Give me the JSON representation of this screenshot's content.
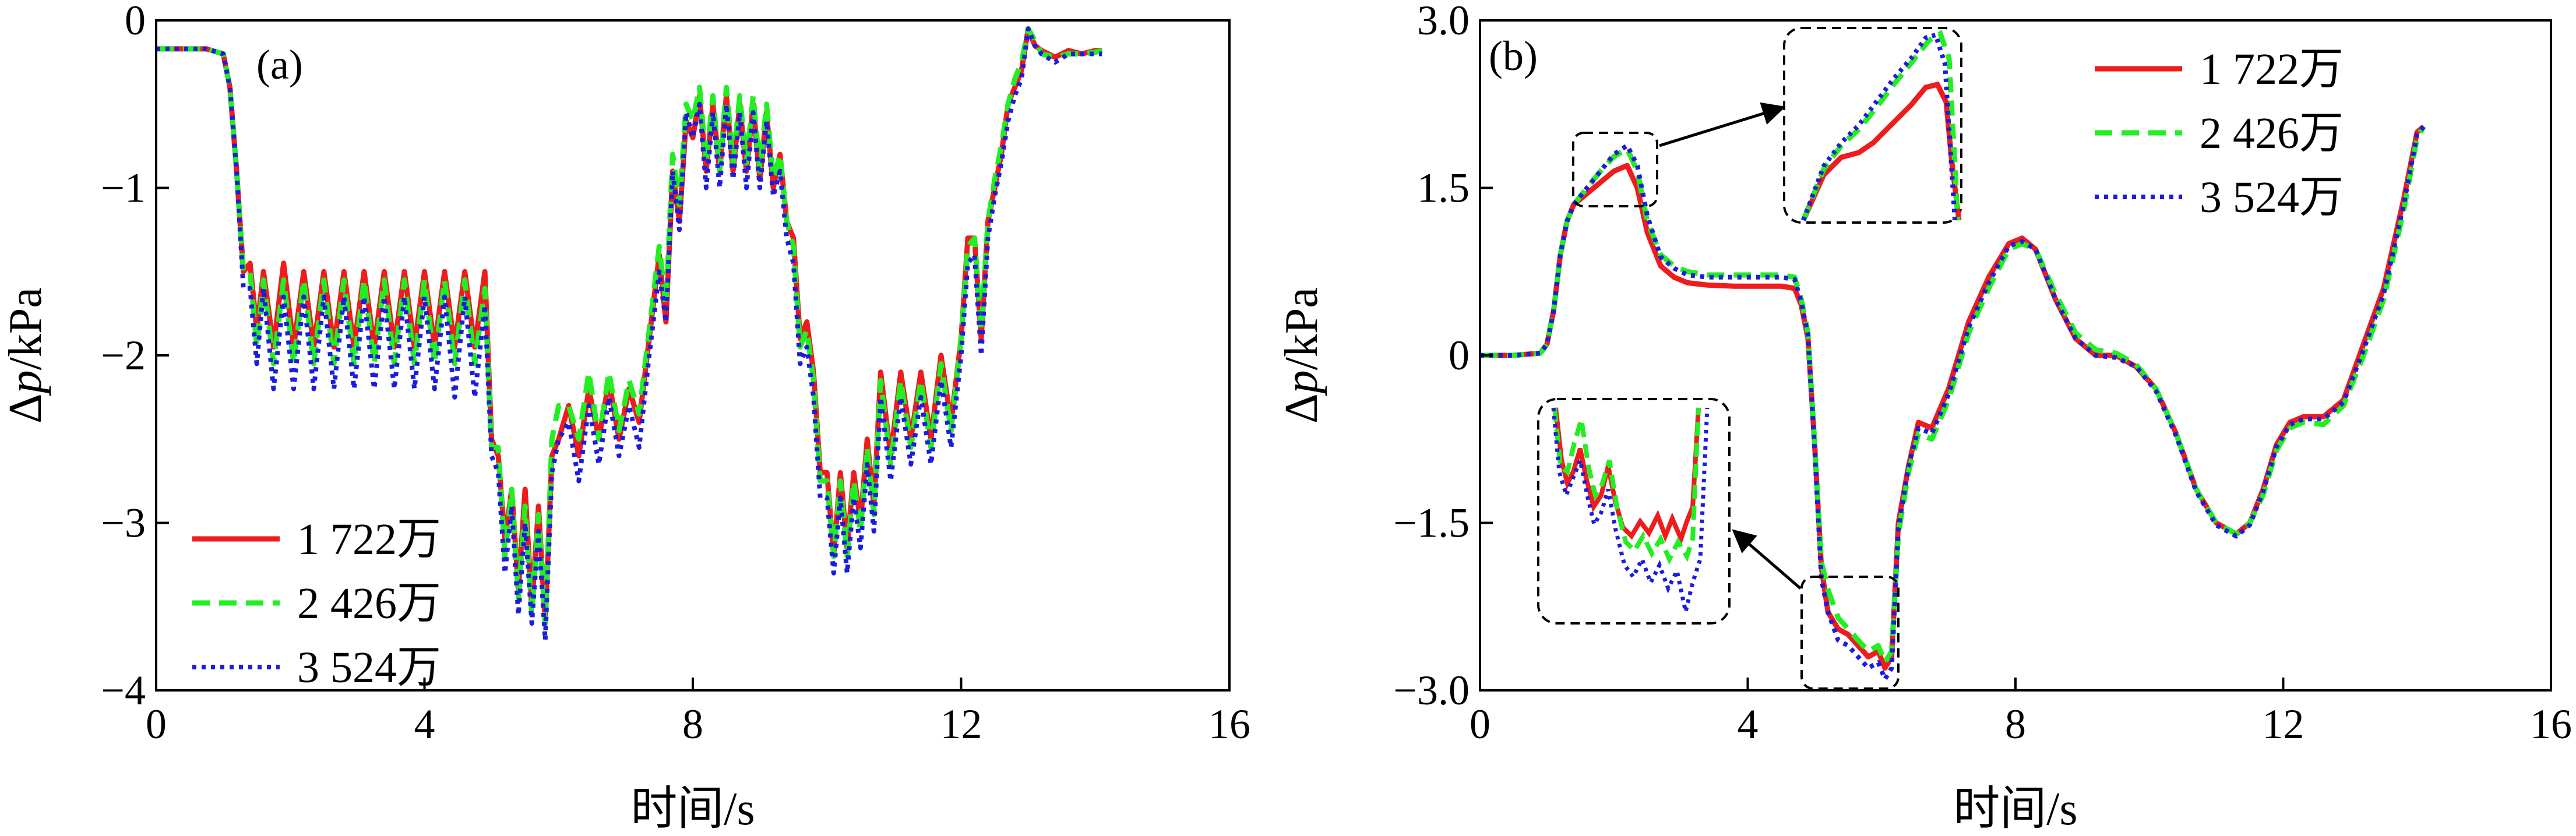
{
  "chart_data": [
    {
      "type": "line",
      "panel_label": "(a)",
      "xlabel": "时间/s",
      "ylabel_prefix": "Δ",
      "ylabel_var": "p",
      "ylabel_suffix": "/kPa",
      "xlim": [
        0,
        16
      ],
      "ylim": [
        -4,
        0
      ],
      "xticks": [
        0,
        4,
        8,
        12,
        16
      ],
      "xtick_labels": [
        "0",
        "4",
        "8",
        "12",
        "16"
      ],
      "yticks": [
        -4,
        -3,
        -2,
        -1,
        0
      ],
      "ytick_labels": [
        "−4",
        "−3",
        "−2",
        "−1",
        "0"
      ],
      "legend_position": "lower-left",
      "x": [
        0.0,
        0.25,
        0.5,
        0.75,
        1.0,
        1.1,
        1.2,
        1.3,
        1.4,
        1.5,
        1.6,
        1.75,
        1.9,
        2.05,
        2.2,
        2.35,
        2.5,
        2.65,
        2.8,
        2.95,
        3.1,
        3.25,
        3.4,
        3.55,
        3.7,
        3.85,
        4.0,
        4.15,
        4.3,
        4.45,
        4.6,
        4.75,
        4.9,
        5.0,
        5.1,
        5.2,
        5.3,
        5.4,
        5.5,
        5.6,
        5.7,
        5.8,
        5.9,
        6.0,
        6.15,
        6.3,
        6.45,
        6.6,
        6.75,
        6.9,
        7.05,
        7.2,
        7.35,
        7.5,
        7.6,
        7.7,
        7.8,
        7.9,
        8.0,
        8.1,
        8.2,
        8.3,
        8.4,
        8.5,
        8.6,
        8.7,
        8.8,
        8.9,
        9.0,
        9.1,
        9.2,
        9.3,
        9.4,
        9.5,
        9.6,
        9.7,
        9.8,
        9.9,
        10.0,
        10.1,
        10.2,
        10.3,
        10.4,
        10.5,
        10.6,
        10.7,
        10.8,
        10.95,
        11.1,
        11.25,
        11.4,
        11.55,
        11.7,
        11.85,
        12.0,
        12.1,
        12.2,
        12.3,
        12.4,
        12.5,
        12.6,
        12.7,
        12.8,
        12.9,
        13.0,
        13.1,
        13.2,
        13.4,
        13.6,
        13.8,
        14.0,
        14.1
      ],
      "series": [
        {
          "name": "1 722万",
          "color": "#ee1c1c",
          "dash": "solid",
          "values": [
            -0.17,
            -0.17,
            -0.17,
            -0.17,
            -0.2,
            -0.4,
            -0.9,
            -1.5,
            -1.45,
            -1.85,
            -1.5,
            -1.95,
            -1.45,
            -1.95,
            -1.5,
            -1.95,
            -1.5,
            -1.95,
            -1.5,
            -1.95,
            -1.5,
            -1.95,
            -1.5,
            -1.95,
            -1.5,
            -1.95,
            -1.5,
            -1.95,
            -1.5,
            -1.95,
            -1.5,
            -1.95,
            -1.5,
            -2.5,
            -2.6,
            -3.1,
            -2.8,
            -3.4,
            -2.8,
            -3.5,
            -2.9,
            -3.6,
            -2.6,
            -2.5,
            -2.3,
            -2.6,
            -2.2,
            -2.5,
            -2.15,
            -2.5,
            -2.2,
            -2.4,
            -1.9,
            -1.4,
            -1.8,
            -0.9,
            -1.2,
            -0.6,
            -0.7,
            -0.45,
            -0.9,
            -0.5,
            -0.9,
            -0.45,
            -0.9,
            -0.5,
            -0.9,
            -0.5,
            -0.95,
            -0.55,
            -1.0,
            -0.8,
            -1.2,
            -1.3,
            -1.9,
            -1.8,
            -2.1,
            -2.7,
            -2.7,
            -3.2,
            -2.7,
            -3.15,
            -2.7,
            -3.0,
            -2.5,
            -2.9,
            -2.1,
            -2.6,
            -2.1,
            -2.5,
            -2.1,
            -2.5,
            -2.0,
            -2.4,
            -1.9,
            -1.3,
            -1.3,
            -1.9,
            -1.2,
            -1.0,
            -0.8,
            -0.5,
            -0.4,
            -0.3,
            -0.05,
            -0.15,
            -0.18,
            -0.22,
            -0.18,
            -0.2,
            -0.18,
            -0.18
          ]
        },
        {
          "name": "2 426万",
          "color": "#22ee22",
          "dash": "dashed",
          "values": [
            -0.17,
            -0.17,
            -0.17,
            -0.17,
            -0.2,
            -0.4,
            -0.9,
            -1.5,
            -1.5,
            -1.95,
            -1.55,
            -2.05,
            -1.55,
            -2.05,
            -1.55,
            -2.05,
            -1.55,
            -2.05,
            -1.55,
            -2.05,
            -1.55,
            -2.05,
            -1.55,
            -2.05,
            -1.55,
            -2.05,
            -1.55,
            -2.05,
            -1.55,
            -2.05,
            -1.55,
            -2.05,
            -1.6,
            -2.55,
            -2.55,
            -3.2,
            -2.8,
            -3.45,
            -2.9,
            -3.55,
            -2.95,
            -3.6,
            -2.5,
            -2.3,
            -2.3,
            -2.5,
            -2.1,
            -2.5,
            -2.1,
            -2.45,
            -2.15,
            -2.35,
            -1.85,
            -1.35,
            -1.7,
            -0.8,
            -1.1,
            -0.5,
            -0.6,
            -0.4,
            -0.85,
            -0.45,
            -0.9,
            -0.4,
            -0.85,
            -0.45,
            -0.85,
            -0.45,
            -0.9,
            -0.5,
            -0.95,
            -0.8,
            -1.2,
            -1.35,
            -1.95,
            -1.85,
            -2.15,
            -2.75,
            -2.75,
            -3.2,
            -2.75,
            -3.2,
            -2.75,
            -3.05,
            -2.55,
            -2.95,
            -2.15,
            -2.65,
            -2.15,
            -2.55,
            -2.15,
            -2.55,
            -2.05,
            -2.45,
            -1.9,
            -1.35,
            -1.3,
            -1.85,
            -1.2,
            -0.95,
            -0.75,
            -0.5,
            -0.35,
            -0.25,
            -0.05,
            -0.12,
            -0.2,
            -0.22,
            -0.2,
            -0.2,
            -0.19,
            -0.18
          ]
        },
        {
          "name": "3 524万",
          "color": "#1c1cdd",
          "dash": "dotted",
          "values": [
            -0.17,
            -0.17,
            -0.17,
            -0.17,
            -0.2,
            -0.4,
            -0.9,
            -1.6,
            -1.6,
            -2.05,
            -1.6,
            -2.2,
            -1.65,
            -2.2,
            -1.65,
            -2.2,
            -1.65,
            -2.2,
            -1.65,
            -2.2,
            -1.65,
            -2.2,
            -1.65,
            -2.2,
            -1.65,
            -2.2,
            -1.65,
            -2.2,
            -1.65,
            -2.25,
            -1.65,
            -2.25,
            -1.7,
            -2.6,
            -2.7,
            -3.3,
            -2.9,
            -3.55,
            -3.0,
            -3.6,
            -3.05,
            -3.7,
            -2.7,
            -2.5,
            -2.4,
            -2.75,
            -2.3,
            -2.65,
            -2.25,
            -2.6,
            -2.3,
            -2.55,
            -2.0,
            -1.5,
            -1.8,
            -0.9,
            -1.25,
            -0.55,
            -0.7,
            -0.5,
            -1.0,
            -0.55,
            -1.0,
            -0.5,
            -0.95,
            -0.55,
            -1.0,
            -0.55,
            -1.0,
            -0.6,
            -1.05,
            -0.9,
            -1.3,
            -1.45,
            -2.05,
            -1.95,
            -2.25,
            -2.85,
            -2.85,
            -3.3,
            -2.85,
            -3.3,
            -2.85,
            -3.15,
            -2.65,
            -3.05,
            -2.25,
            -2.75,
            -2.25,
            -2.65,
            -2.25,
            -2.65,
            -2.15,
            -2.55,
            -2.0,
            -1.45,
            -1.4,
            -2.0,
            -1.3,
            -1.05,
            -0.85,
            -0.6,
            -0.45,
            -0.35,
            -0.05,
            -0.15,
            -0.2,
            -0.25,
            -0.2,
            -0.2,
            -0.2,
            -0.2
          ]
        }
      ]
    },
    {
      "type": "line",
      "panel_label": "(b)",
      "xlabel": "时间/s",
      "ylabel_prefix": "Δ",
      "ylabel_var": "p",
      "ylabel_suffix": "/kPa",
      "xlim": [
        0,
        16
      ],
      "ylim": [
        -3.0,
        3.0
      ],
      "xticks": [
        0,
        4,
        8,
        12,
        16
      ],
      "xtick_labels": [
        "0",
        "4",
        "8",
        "12",
        "16"
      ],
      "yticks": [
        -3.0,
        -1.5,
        0,
        1.5,
        3.0
      ],
      "ytick_labels": [
        "−3.0",
        "−1.5",
        "0",
        "1.5",
        "3.0"
      ],
      "legend_position": "top-right",
      "annotations": [
        "zoom inset near t≈2.2 s (peak ≈1.7 kPa)",
        "zoom inset near t≈5.5 s (trough ≈−2.7 kPa)"
      ],
      "x": [
        0.0,
        0.5,
        0.9,
        1.0,
        1.1,
        1.2,
        1.3,
        1.4,
        1.6,
        1.8,
        2.0,
        2.2,
        2.35,
        2.5,
        2.7,
        2.9,
        3.1,
        3.4,
        3.8,
        4.2,
        4.5,
        4.7,
        4.8,
        4.9,
        5.0,
        5.1,
        5.2,
        5.35,
        5.5,
        5.65,
        5.8,
        5.95,
        6.05,
        6.15,
        6.25,
        6.4,
        6.55,
        6.75,
        7.0,
        7.3,
        7.6,
        7.9,
        8.1,
        8.3,
        8.6,
        8.9,
        9.2,
        9.5,
        9.8,
        10.1,
        10.4,
        10.7,
        11.0,
        11.3,
        11.5,
        11.7,
        11.9,
        12.1,
        12.3,
        12.6,
        12.9,
        13.2,
        13.5,
        13.8,
        14.0,
        14.1
      ],
      "series": [
        {
          "name": "1 722万",
          "color": "#ee1c1c",
          "dash": "solid",
          "values": [
            0,
            0,
            0.02,
            0.1,
            0.4,
            0.9,
            1.2,
            1.35,
            1.45,
            1.55,
            1.65,
            1.7,
            1.5,
            1.1,
            0.8,
            0.7,
            0.65,
            0.63,
            0.62,
            0.62,
            0.62,
            0.6,
            0.45,
            0.15,
            -0.8,
            -1.9,
            -2.3,
            -2.45,
            -2.5,
            -2.6,
            -2.7,
            -2.65,
            -2.8,
            -2.7,
            -1.5,
            -1.0,
            -0.6,
            -0.65,
            -0.3,
            0.3,
            0.7,
            1.0,
            1.05,
            0.95,
            0.5,
            0.15,
            0.0,
            0.0,
            -0.1,
            -0.3,
            -0.7,
            -1.2,
            -1.5,
            -1.6,
            -1.5,
            -1.2,
            -0.8,
            -0.6,
            -0.55,
            -0.55,
            -0.4,
            0.1,
            0.6,
            1.4,
            2.0,
            2.05
          ]
        },
        {
          "name": "2 426万",
          "color": "#22ee22",
          "dash": "dashed",
          "values": [
            0,
            0,
            0.02,
            0.1,
            0.4,
            0.9,
            1.2,
            1.35,
            1.5,
            1.65,
            1.78,
            1.85,
            1.65,
            1.2,
            0.9,
            0.8,
            0.75,
            0.72,
            0.72,
            0.72,
            0.72,
            0.7,
            0.5,
            0.2,
            -0.8,
            -1.85,
            -2.1,
            -2.35,
            -2.45,
            -2.55,
            -2.65,
            -2.6,
            -2.75,
            -2.65,
            -1.6,
            -1.05,
            -0.7,
            -0.75,
            -0.4,
            0.2,
            0.6,
            0.95,
            1.0,
            0.95,
            0.55,
            0.2,
            0.05,
            0.02,
            -0.08,
            -0.3,
            -0.7,
            -1.2,
            -1.5,
            -1.6,
            -1.5,
            -1.25,
            -0.85,
            -0.65,
            -0.6,
            -0.62,
            -0.45,
            0.0,
            0.5,
            1.3,
            1.95,
            2.05
          ]
        },
        {
          "name": "3 524万",
          "color": "#1c1cdd",
          "dash": "dotted",
          "values": [
            0,
            0,
            0.02,
            0.1,
            0.4,
            0.9,
            1.2,
            1.35,
            1.5,
            1.65,
            1.8,
            1.88,
            1.7,
            1.25,
            0.88,
            0.78,
            0.72,
            0.7,
            0.7,
            0.7,
            0.7,
            0.68,
            0.48,
            0.18,
            -0.85,
            -2.0,
            -2.3,
            -2.55,
            -2.6,
            -2.7,
            -2.8,
            -2.75,
            -2.9,
            -2.8,
            -1.55,
            -1.0,
            -0.65,
            -0.7,
            -0.35,
            0.25,
            0.65,
            0.98,
            1.02,
            0.95,
            0.5,
            0.15,
            0.0,
            -0.02,
            -0.1,
            -0.32,
            -0.72,
            -1.22,
            -1.52,
            -1.62,
            -1.52,
            -1.22,
            -0.82,
            -0.62,
            -0.57,
            -0.57,
            -0.42,
            0.05,
            0.55,
            1.35,
            1.98,
            2.05
          ]
        }
      ]
    }
  ]
}
